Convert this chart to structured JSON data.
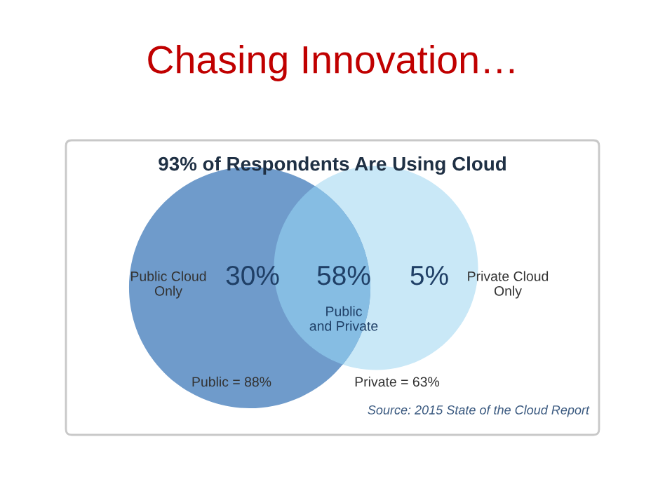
{
  "chart_data": {
    "type": "other",
    "title": "Chasing Innovation…",
    "subtitle": "93% of Respondents Are Using Cloud",
    "categories": [
      "Public Cloud\nOnly",
      "Public\nand Private",
      "Private Cloud\nOnly"
    ],
    "values": [
      30,
      58,
      5
    ],
    "value_labels": [
      "30%",
      "58%",
      "5%"
    ],
    "colors": [
      "#6f9bcb",
      "#86bde3",
      "#c9e8f7"
    ],
    "annotations": [
      "Public = 88%",
      "Private = 63%",
      "Source: 2015 State of the Cloud Report"
    ]
  }
}
